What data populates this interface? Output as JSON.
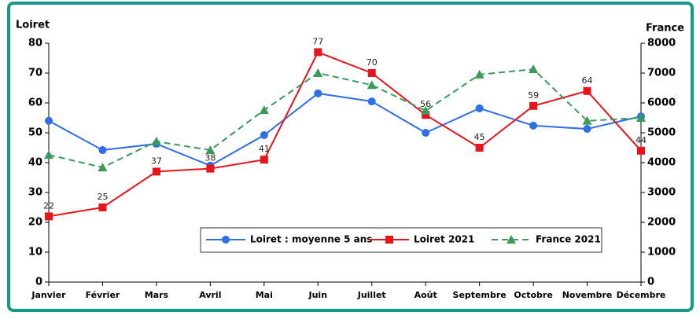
{
  "chart_data": {
    "type": "line",
    "ylabel": "Loiret",
    "y2label": "France",
    "categories": [
      "Janvier",
      "Février",
      "Mars",
      "Avril",
      "Mai",
      "Juin",
      "Juillet",
      "Août",
      "Septembre",
      "Octobre",
      "Novembre",
      "Décembre"
    ],
    "series": [
      {
        "name": "Loiret : moyenne 5 ans",
        "color": "#2f6ee6",
        "marker": "circle",
        "values": [
          54,
          44.2,
          46.3,
          39,
          49.2,
          63.2,
          60.5,
          50,
          58.2,
          52.4,
          51.3,
          55.5
        ]
      },
      {
        "name": "Loiret 2021",
        "color": "#e8141b",
        "marker": "square",
        "values": [
          22,
          25,
          37,
          38,
          41,
          77,
          70,
          56,
          45,
          59,
          64,
          44
        ],
        "labels": true
      },
      {
        "name": "France 2021",
        "color": "#3a9a5c",
        "marker": "triangle",
        "dashed": true,
        "axis": "y2",
        "values": [
          4260,
          3840,
          4710,
          4420,
          5760,
          7000,
          6600,
          5740,
          6950,
          7130,
          5400,
          5500
        ]
      }
    ],
    "ylim": [
      0,
      80
    ],
    "yticks": [
      0,
      10,
      20,
      30,
      40,
      50,
      60,
      70,
      80
    ],
    "y2lim": [
      0,
      8000
    ],
    "y2ticks": [
      0,
      1000,
      2000,
      3000,
      4000,
      5000,
      6000,
      7000,
      8000
    ]
  }
}
